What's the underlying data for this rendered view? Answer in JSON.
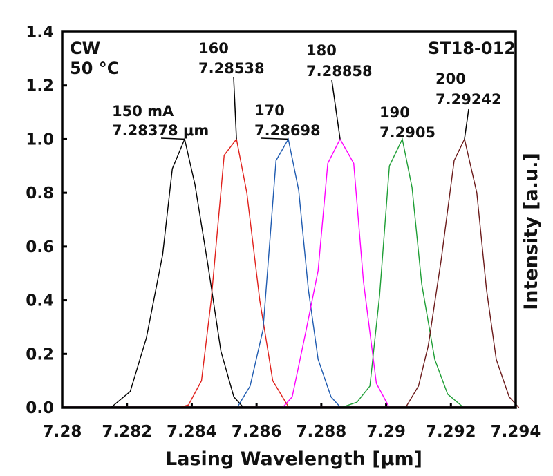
{
  "chart_data": {
    "type": "line",
    "xlabel": "Lasing Wavelength [μm]",
    "ylabel": "Intensity [a.u.]",
    "xlim": [
      7.28,
      7.294
    ],
    "ylim": [
      0.0,
      1.4
    ],
    "x_tick_labels": [
      "7.28",
      "7.282",
      "7.284",
      "7.286",
      "7.288",
      "7.29",
      "7.292",
      "7.294"
    ],
    "x_tick_values": [
      7.28,
      7.282,
      7.284,
      7.286,
      7.288,
      7.29,
      7.292,
      7.294
    ],
    "y_tick_labels": [
      "0.0",
      "0.2",
      "0.4",
      "0.6",
      "0.8",
      "1.0",
      "1.2",
      "1.4"
    ],
    "y_tick_values": [
      0.0,
      0.2,
      0.4,
      0.6,
      0.8,
      1.0,
      1.2,
      1.4
    ],
    "corner_labels": {
      "mode": "CW",
      "temperature": "50 °C",
      "sample": "ST18-012"
    },
    "series": [
      {
        "name": "150 mA",
        "color": "#000000",
        "peak_wavelength": 7.28378,
        "current_label": "150 mA",
        "wavelength_label": "7.28378 μm",
        "x": [
          7.2815,
          7.2821,
          7.2826,
          7.2831,
          7.2834,
          7.28378,
          7.2841,
          7.2845,
          7.2849,
          7.2853,
          7.2856,
          7.2862
        ],
        "y": [
          0.0,
          0.06,
          0.26,
          0.57,
          0.89,
          1.0,
          0.83,
          0.53,
          0.21,
          0.04,
          0.0,
          0.0
        ]
      },
      {
        "name": "160",
        "color": "#e0201b",
        "peak_wavelength": 7.28538,
        "current_label": "160",
        "wavelength_label": "7.28538",
        "x": [
          7.2836,
          7.2839,
          7.2843,
          7.2846,
          7.285,
          7.28538,
          7.2857,
          7.2861,
          7.2865,
          7.2868,
          7.287,
          7.2876
        ],
        "y": [
          0.0,
          0.01,
          0.1,
          0.4,
          0.94,
          1.0,
          0.8,
          0.4,
          0.1,
          0.04,
          0.0,
          0.0
        ]
      },
      {
        "name": "170",
        "color": "#1f5bb0",
        "peak_wavelength": 7.28698,
        "current_label": "170",
        "wavelength_label": "7.28698",
        "x": [
          7.2854,
          7.2858,
          7.2862,
          7.2866,
          7.28698,
          7.2873,
          7.2876,
          7.2879,
          7.2883,
          7.2886,
          7.2892
        ],
        "y": [
          0.0,
          0.08,
          0.29,
          0.92,
          1.0,
          0.81,
          0.44,
          0.18,
          0.04,
          0.0,
          0.0
        ]
      },
      {
        "name": "180",
        "color": "#ff00ff",
        "peak_wavelength": 7.28858,
        "current_label": "180",
        "wavelength_label": "7.28858",
        "x": [
          7.2868,
          7.2871,
          7.2875,
          7.2879,
          7.2882,
          7.28858,
          7.289,
          7.2893,
          7.2897,
          7.2901,
          7.2906
        ],
        "y": [
          0.0,
          0.04,
          0.27,
          0.51,
          0.91,
          1.0,
          0.91,
          0.47,
          0.09,
          0.0,
          0.0
        ]
      },
      {
        "name": "190",
        "color": "#1e9e35",
        "peak_wavelength": 7.2905,
        "current_label": "190",
        "wavelength_label": "7.2905",
        "x": [
          7.2886,
          7.2891,
          7.2895,
          7.2898,
          7.2901,
          7.2905,
          7.2908,
          7.2911,
          7.2915,
          7.2919,
          7.2924
        ],
        "y": [
          0.0,
          0.02,
          0.08,
          0.42,
          0.9,
          1.0,
          0.82,
          0.46,
          0.18,
          0.05,
          0.0
        ]
      },
      {
        "name": "200",
        "color": "#6b1a1a",
        "peak_wavelength": 7.29242,
        "current_label": "200",
        "wavelength_label": "7.29242",
        "x": [
          7.2902,
          7.2906,
          7.291,
          7.2913,
          7.2917,
          7.2921,
          7.29242,
          7.2928,
          7.2931,
          7.2934,
          7.2938,
          7.2941
        ],
        "y": [
          0.0,
          0.0,
          0.08,
          0.23,
          0.55,
          0.92,
          1.0,
          0.8,
          0.44,
          0.18,
          0.04,
          0.0
        ]
      }
    ]
  }
}
